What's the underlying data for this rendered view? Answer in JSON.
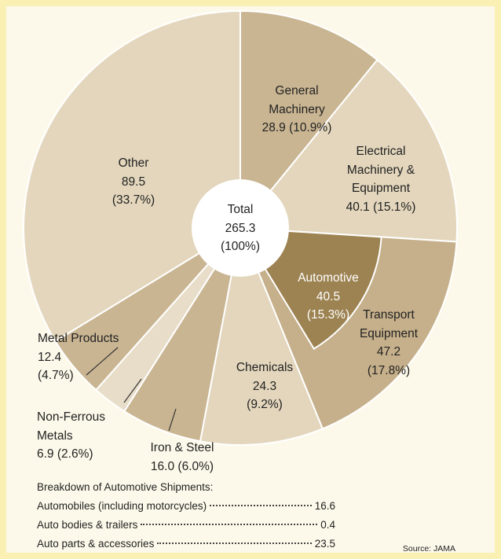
{
  "chart_data": {
    "type": "pie",
    "donut": true,
    "total": {
      "label": "Total",
      "value": 265.3,
      "percent_label": "(100%)"
    },
    "slices": [
      {
        "name": "General Machinery",
        "value": 28.9,
        "value_label": "28.9",
        "percent_label": "(10.9%)",
        "color": "#c9b592"
      },
      {
        "name": "Electrical Machinery & Equipment",
        "value": 40.1,
        "value_label": "40.1",
        "percent_label": "(15.1%)",
        "color": "#e3d6bc"
      },
      {
        "name": "Transport Equipment",
        "value": 47.2,
        "value_label": "47.2",
        "percent_label": "(17.8%)",
        "color": "#c6b08b",
        "sub": {
          "name": "Automotive",
          "value": 40.5,
          "value_label": "40.5",
          "percent_label": "(15.3%)",
          "color": "#9d8352"
        }
      },
      {
        "name": "Chemicals",
        "value": 24.3,
        "value_label": "24.3",
        "percent_label": "(9.2%)",
        "color": "#e3d6bc"
      },
      {
        "name": "Iron & Steel",
        "value": 16.0,
        "value_label": "16.0",
        "percent_label": "(6.0%)",
        "color": "#c9b592"
      },
      {
        "name": "Non-Ferrous Metals",
        "value": 6.9,
        "value_label": "6.9",
        "percent_label": "(2.6%)",
        "color": "#e8ddc8"
      },
      {
        "name": "Metal Products",
        "value": 12.4,
        "value_label": "12.4",
        "percent_label": "(4.7%)",
        "color": "#c9b592"
      },
      {
        "name": "Other",
        "value": 89.5,
        "value_label": "89.5",
        "percent_label": "(33.7%)",
        "color": "#e3d6bc"
      }
    ],
    "breakdown": {
      "title": "Breakdown of Automotive Shipments:",
      "items": [
        {
          "name": "Automobiles (including motorcycles)",
          "value": 16.6
        },
        {
          "name": "Auto bodies & trailers",
          "value": 0.4
        },
        {
          "name": "Auto parts & accessories",
          "value": 23.5
        }
      ]
    },
    "source": "Source: JAMA"
  }
}
